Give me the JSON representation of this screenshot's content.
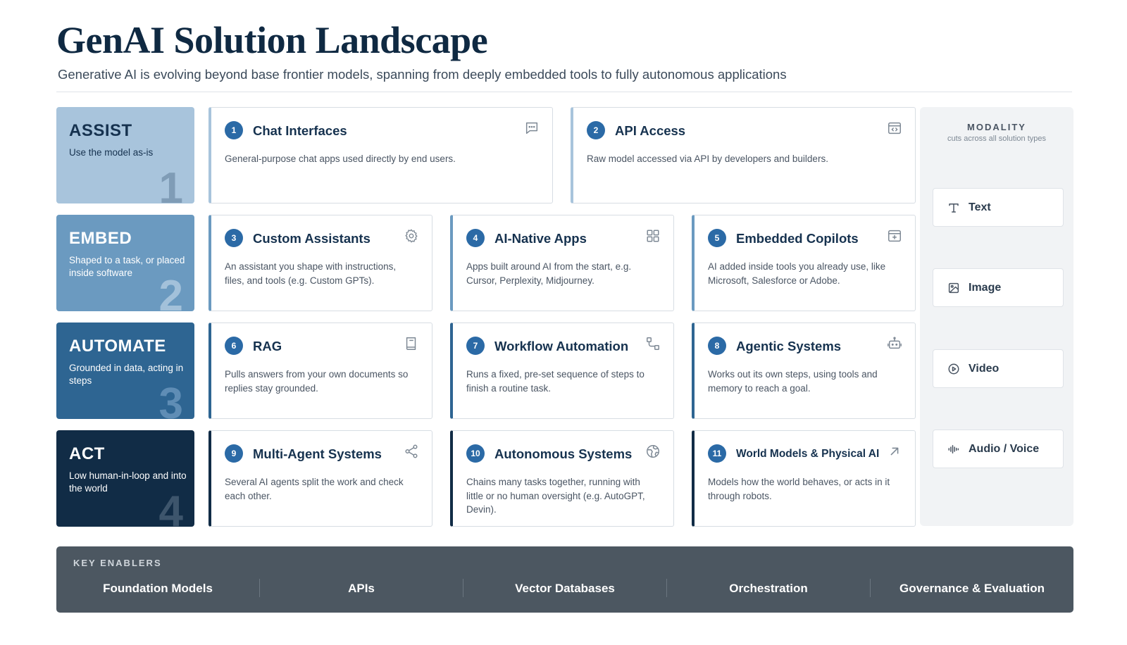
{
  "header": {
    "title": "GenAI Solution Landscape",
    "subtitle": "Generative AI is evolving beyond base frontier models, spanning from deeply embedded tools to fully autonomous applications"
  },
  "rows": [
    {
      "title": "ASSIST",
      "desc": "Use the model as-is",
      "num": "1",
      "bg": "#a8c4dc",
      "fg": "#16324f",
      "numcolor": "#7f9cb6",
      "accent": "#a8c4dc"
    },
    {
      "title": "EMBED",
      "desc": "Shaped to a task, or placed inside software",
      "num": "2",
      "bg": "#6b9ac0",
      "fg": "#ffffff",
      "numcolor": "#a3c1da",
      "accent": "#6b9ac0"
    },
    {
      "title": "AUTOMATE",
      "desc": "Grounded in data, acting in steps",
      "num": "3",
      "bg": "#2e6592",
      "fg": "#ffffff",
      "numcolor": "#5f8db5",
      "accent": "#2e6592"
    },
    {
      "title": "ACT",
      "desc": "Low human-in-loop and into the world",
      "num": "4",
      "bg": "#112c46",
      "fg": "#ffffff",
      "numcolor": "#3d556c",
      "accent": "#112c46"
    }
  ],
  "cards": [
    {
      "num": "1",
      "title": "Chat Interfaces",
      "desc": "General-purpose chat apps used directly by end users.",
      "icon": "chat-icon"
    },
    {
      "num": "2",
      "title": "API Access",
      "desc": "Raw model accessed via API by developers and builders.",
      "icon": "code-window-icon"
    },
    {
      "num": "3",
      "title": "Custom Assistants",
      "desc": "An assistant you shape with instructions, files, and tools (e.g. Custom GPTs).",
      "icon": "gear-icon"
    },
    {
      "num": "4",
      "title": "AI-Native Apps",
      "desc": "Apps built around AI from the start, e.g. Cursor, Perplexity, Midjourney.",
      "icon": "grid-icon"
    },
    {
      "num": "5",
      "title": "Embedded Copilots",
      "desc": "AI added inside tools you already use, like Microsoft, Salesforce or Adobe.",
      "icon": "window-plus-icon"
    },
    {
      "num": "6",
      "title": "RAG",
      "desc": "Pulls answers from your own documents so replies stay grounded.",
      "icon": "book-icon"
    },
    {
      "num": "7",
      "title": "Workflow Automation",
      "desc": "Runs a fixed, pre-set sequence of steps to finish a routine task.",
      "icon": "workflow-icon"
    },
    {
      "num": "8",
      "title": "Agentic Systems",
      "desc": "Works out its own steps, using tools and memory to reach a goal.",
      "icon": "robot-icon"
    },
    {
      "num": "9",
      "title": "Multi-Agent Systems",
      "desc": "Several AI agents split the work and check each other.",
      "icon": "share-icon"
    },
    {
      "num": "10",
      "title": "Autonomous Systems",
      "desc": "Chains many tasks together, running with little or no human oversight (e.g. AutoGPT, Devin).",
      "icon": "globe-icon"
    },
    {
      "num": "11",
      "title": "World Models & Physical AI",
      "desc": "Models how the world behaves, or acts in it through robots.",
      "icon": "arrow-up-right-icon"
    }
  ],
  "modality": {
    "heading": "MODALITY",
    "subheading": "cuts across all solution types",
    "items": [
      {
        "label": "Text",
        "icon": "text-icon"
      },
      {
        "label": "Image",
        "icon": "image-icon"
      },
      {
        "label": "Video",
        "icon": "play-circle-icon"
      },
      {
        "label": "Audio / Voice",
        "icon": "audio-wave-icon"
      }
    ]
  },
  "enablers": {
    "heading": "KEY ENABLERS",
    "items": [
      "Foundation Models",
      "APIs",
      "Vector Databases",
      "Orchestration",
      "Governance & Evaluation"
    ]
  },
  "colors": {
    "badge": "#2b6aa6",
    "title_text": "#0f2942",
    "enabler_bg": "#4c5761"
  }
}
